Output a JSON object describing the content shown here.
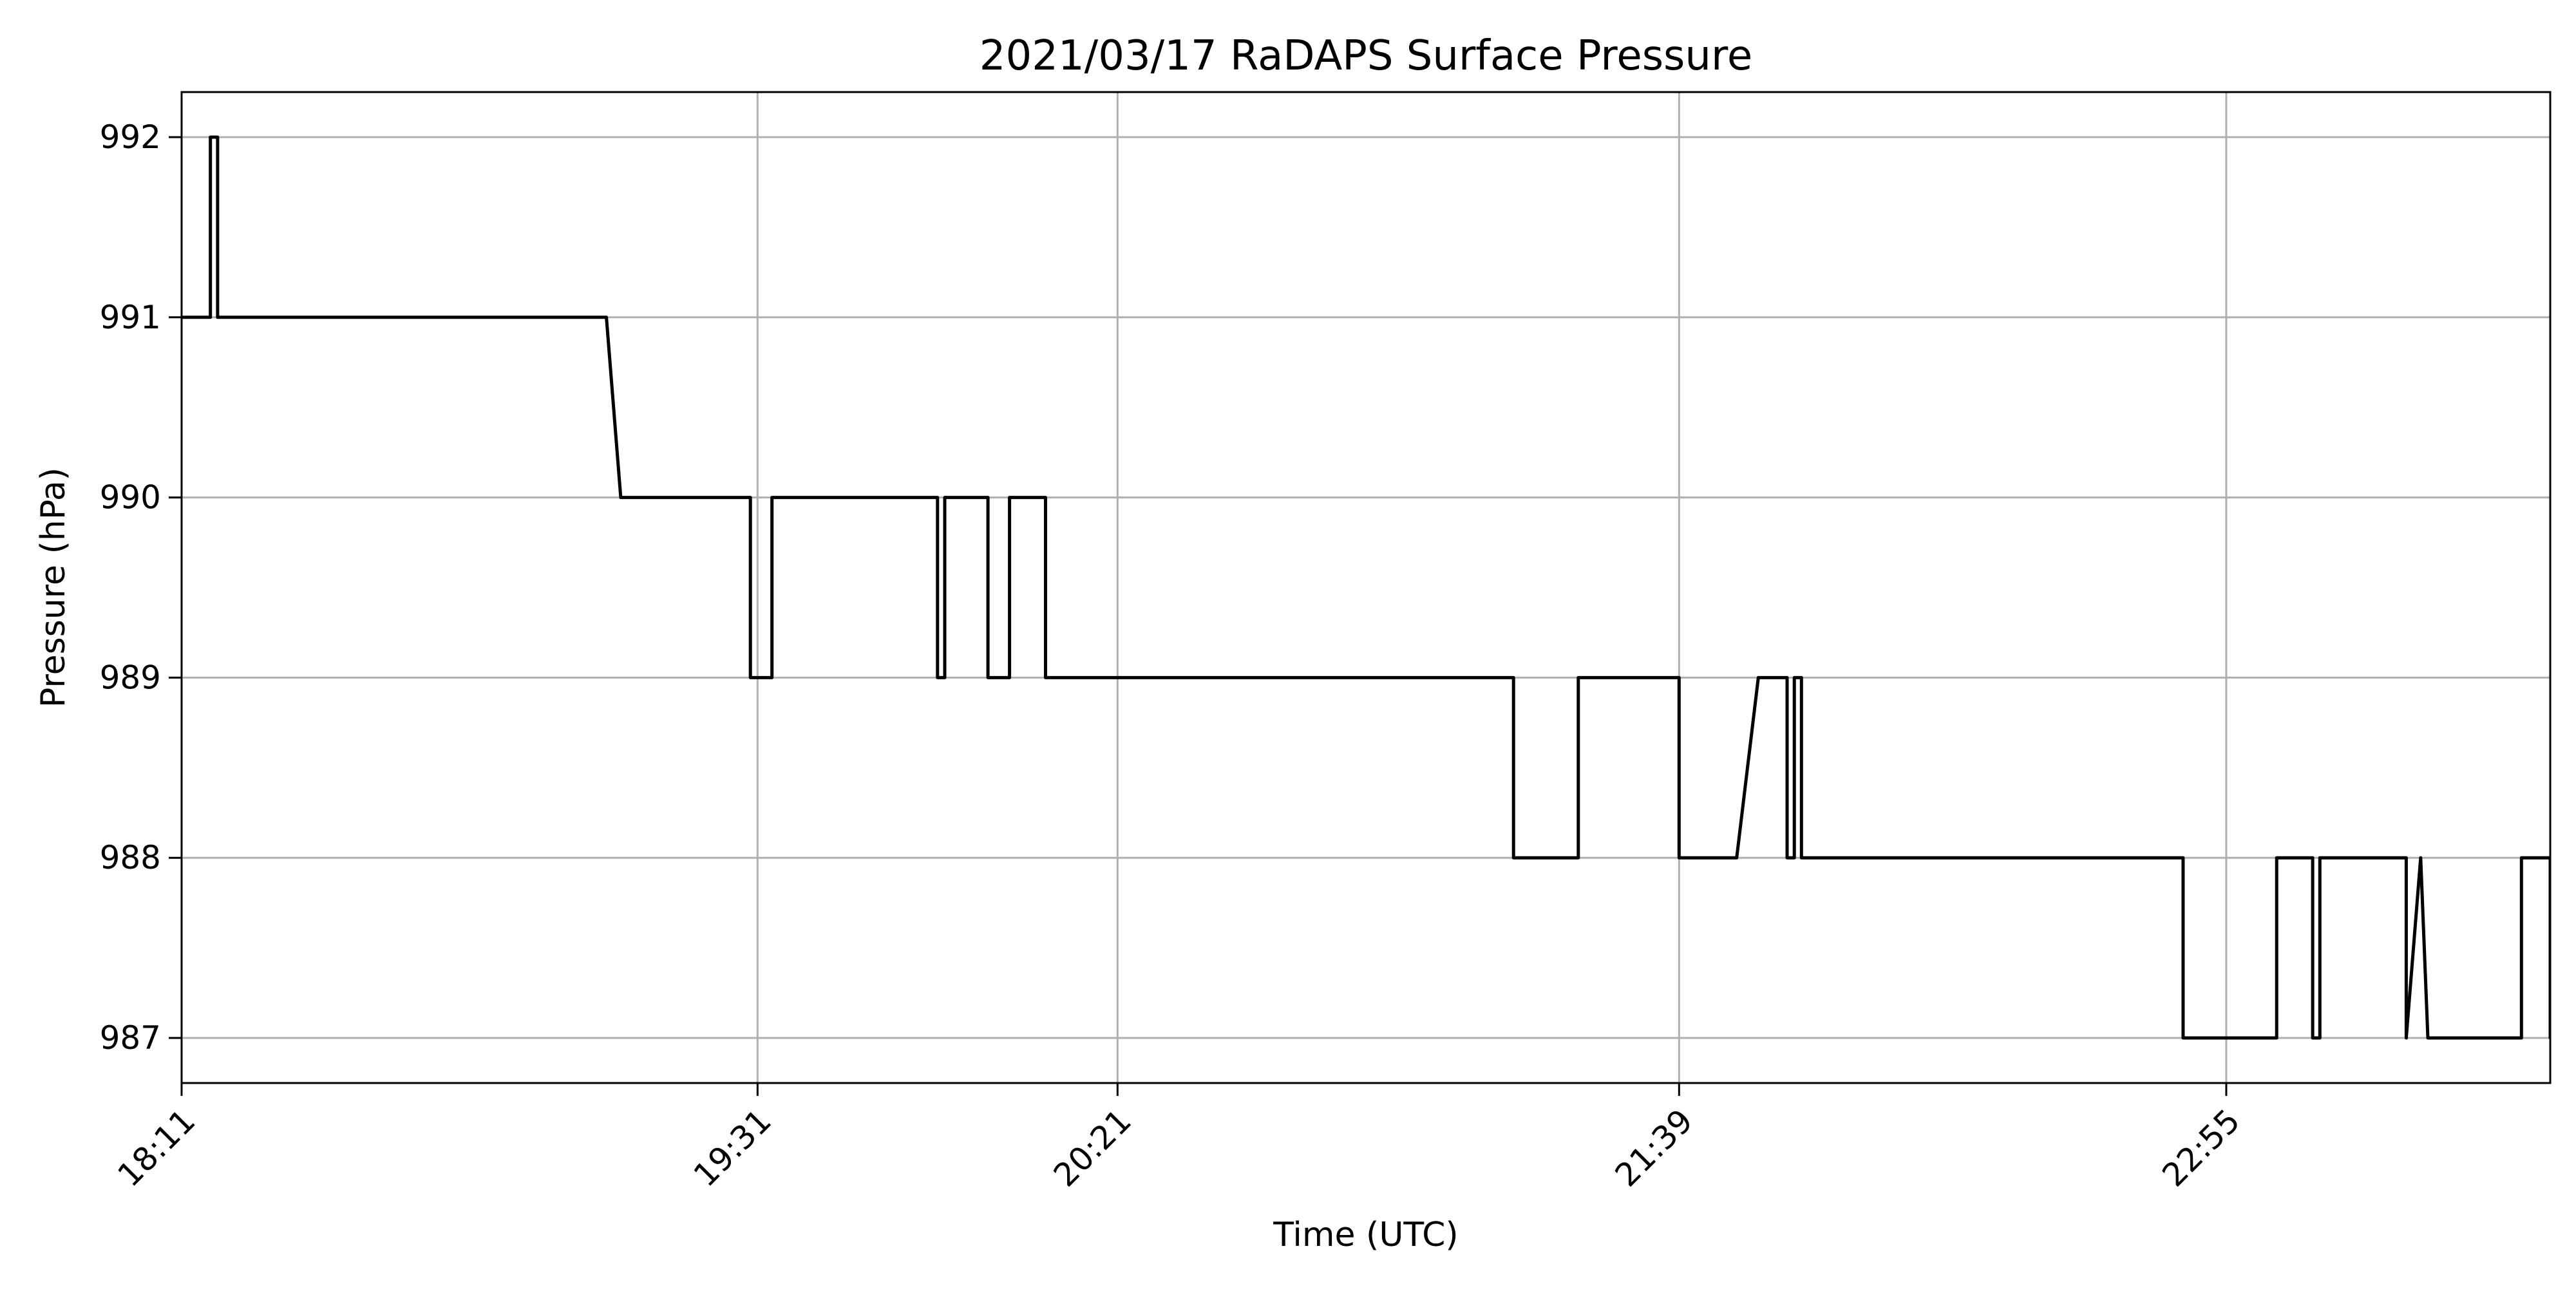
{
  "chart_data": {
    "type": "line",
    "title": "2021/03/17 RaDAPS Surface Pressure",
    "xlabel": "Time (UTC)",
    "ylabel": "Pressure (hPa)",
    "x_ticks": [
      {
        "time": "18:11",
        "label": "18:11"
      },
      {
        "time": "19:31",
        "label": "19:31"
      },
      {
        "time": "20:21",
        "label": "20:21"
      },
      {
        "time": "21:39",
        "label": "21:39"
      },
      {
        "time": "22:55",
        "label": "22:55"
      }
    ],
    "y_ticks": [
      987,
      988,
      989,
      990,
      991,
      992
    ],
    "xlim": [
      "18:11",
      "23:40"
    ],
    "ylim": [
      986.75,
      992.25
    ],
    "grid": true,
    "legend": "none",
    "line_color": "#000000",
    "grid_color": "#b0b0b0",
    "series": [
      {
        "x": [
          "18:11",
          "18:15",
          "18:15",
          "18:16",
          "18:16",
          "18:17",
          "19:10",
          "19:12",
          "19:30",
          "19:30",
          "19:33",
          "19:33",
          "19:56",
          "19:56",
          "19:57",
          "19:57",
          "20:03",
          "20:03",
          "20:06",
          "20:06",
          "20:11",
          "20:11",
          "21:16",
          "21:16",
          "21:25",
          "21:25",
          "21:39",
          "21:39",
          "21:47",
          "21:50",
          "21:54",
          "21:54",
          "21:55",
          "21:55",
          "21:56",
          "21:56",
          "22:49",
          "22:49",
          "23:02",
          "23:02",
          "23:07",
          "23:07",
          "23:08",
          "23:08",
          "23:20",
          "23:20",
          "23:22",
          "23:23",
          "23:36",
          "23:36",
          "23:40",
          "23:40",
          "23:58"
        ],
        "y": [
          991,
          991,
          992,
          992,
          991,
          991,
          991,
          990,
          990,
          989,
          989,
          990,
          990,
          989,
          989,
          990,
          990,
          989,
          989,
          990,
          990,
          989,
          989,
          988,
          988,
          989,
          989,
          988,
          988,
          989,
          989,
          988,
          988,
          989,
          989,
          988,
          988,
          987,
          987,
          988,
          988,
          987,
          987,
          988,
          988,
          987,
          988,
          987,
          987,
          988,
          988,
          987,
          987
        ]
      }
    ]
  }
}
